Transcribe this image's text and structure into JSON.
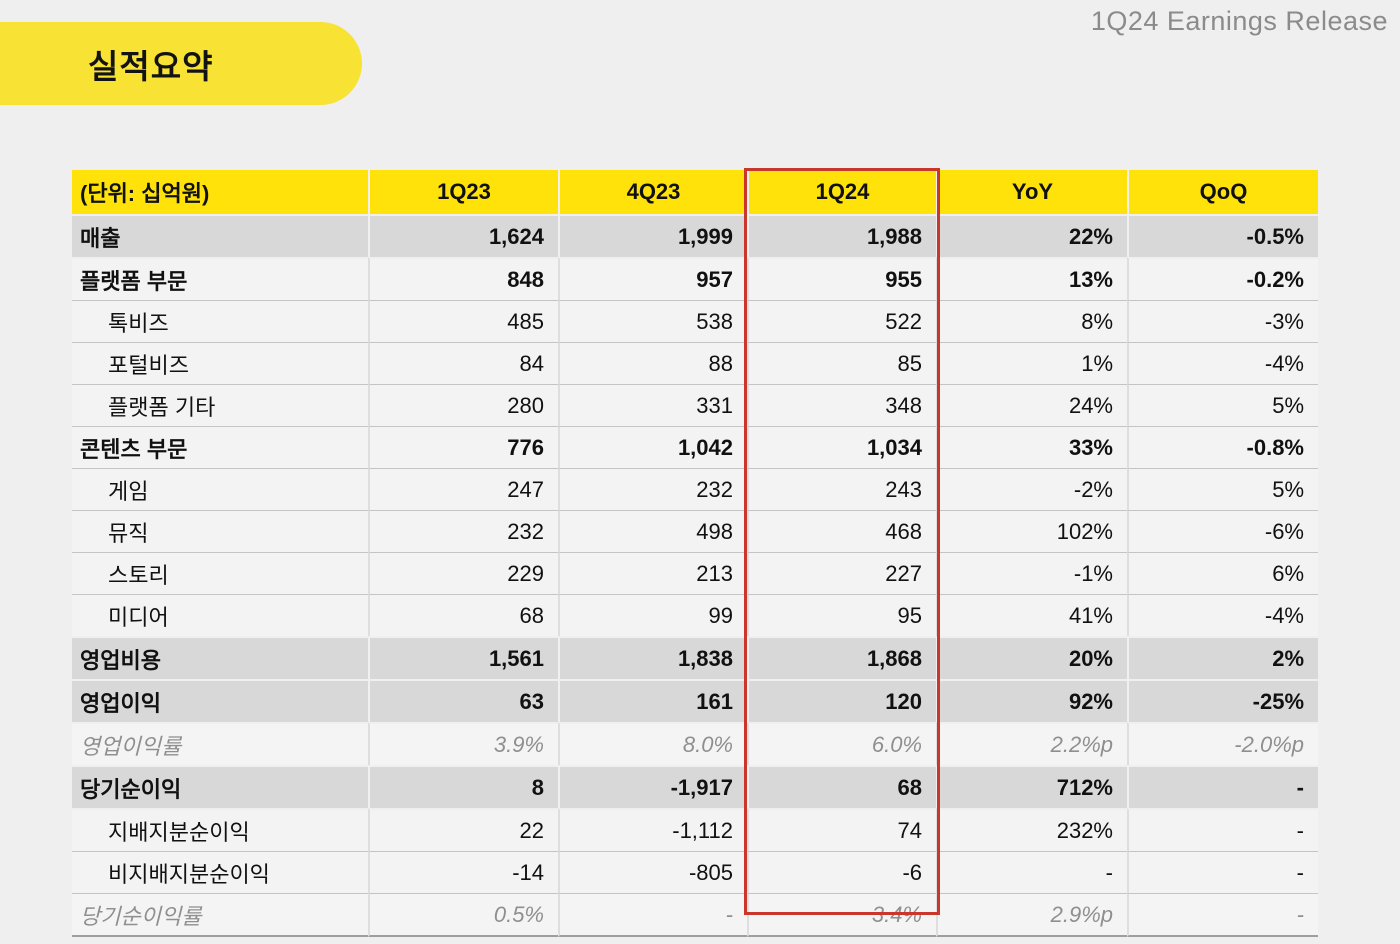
{
  "page": {
    "corner_label": "1Q24 Earnings Release",
    "title": "실적요약"
  },
  "colors": {
    "page_background": "#efefef",
    "title_pill_yellow": "#f8e233",
    "header_yellow": "#ffe20a",
    "dark_row_gray": "#d8d8d8",
    "light_row_gray": "#f3f3f3",
    "ratio_text_gray": "#8f8f8f",
    "highlight_red": "#c9362b"
  },
  "table": {
    "unit_note": "(단위: 십억원)",
    "columns": [
      "(단위: 십억원)",
      "1Q23",
      "4Q23",
      "1Q24",
      "YoY",
      "QoQ"
    ],
    "highlighted_column": "1Q24",
    "rows": [
      {
        "label": "매출",
        "style": "dark",
        "values": [
          "1,624",
          "1,999",
          "1,988",
          "22%",
          "-0.5%"
        ]
      },
      {
        "label": "플랫폼 부문",
        "style": "section",
        "values": [
          "848",
          "957",
          "955",
          "13%",
          "-0.2%"
        ]
      },
      {
        "label": "톡비즈",
        "style": "sub",
        "values": [
          "485",
          "538",
          "522",
          "8%",
          "-3%"
        ]
      },
      {
        "label": "포털비즈",
        "style": "sub",
        "values": [
          "84",
          "88",
          "85",
          "1%",
          "-4%"
        ]
      },
      {
        "label": "플랫폼 기타",
        "style": "sub",
        "values": [
          "280",
          "331",
          "348",
          "24%",
          "5%"
        ]
      },
      {
        "label": "콘텐츠 부문",
        "style": "section",
        "values": [
          "776",
          "1,042",
          "1,034",
          "33%",
          "-0.8%"
        ]
      },
      {
        "label": "게임",
        "style": "sub",
        "values": [
          "247",
          "232",
          "243",
          "-2%",
          "5%"
        ]
      },
      {
        "label": "뮤직",
        "style": "sub",
        "values": [
          "232",
          "498",
          "468",
          "102%",
          "-6%"
        ]
      },
      {
        "label": "스토리",
        "style": "sub",
        "values": [
          "229",
          "213",
          "227",
          "-1%",
          "6%"
        ]
      },
      {
        "label": "미디어",
        "style": "sub",
        "values": [
          "68",
          "99",
          "95",
          "41%",
          "-4%"
        ]
      },
      {
        "label": "영업비용",
        "style": "dark",
        "values": [
          "1,561",
          "1,838",
          "1,868",
          "20%",
          "2%"
        ]
      },
      {
        "label": "영업이익",
        "style": "dark",
        "values": [
          "63",
          "161",
          "120",
          "92%",
          "-25%"
        ]
      },
      {
        "label": "영업이익률",
        "style": "ratio",
        "values": [
          "3.9%",
          "8.0%",
          "6.0%",
          "2.2%p",
          "-2.0%p"
        ]
      },
      {
        "label": "당기순이익",
        "style": "dark",
        "values": [
          "8",
          "-1,917",
          "68",
          "712%",
          "-"
        ]
      },
      {
        "label": "지배지분순이익",
        "style": "sub",
        "values": [
          "22",
          "-1,112",
          "74",
          "232%",
          "-"
        ]
      },
      {
        "label": "비지배지분순이익",
        "style": "sub",
        "values": [
          "-14",
          "-805",
          "-6",
          "-",
          "-"
        ]
      },
      {
        "label": "당기순이익률",
        "style": "ratio",
        "values": [
          "0.5%",
          "-",
          "3.4%",
          "2.9%p",
          "-"
        ]
      }
    ]
  }
}
